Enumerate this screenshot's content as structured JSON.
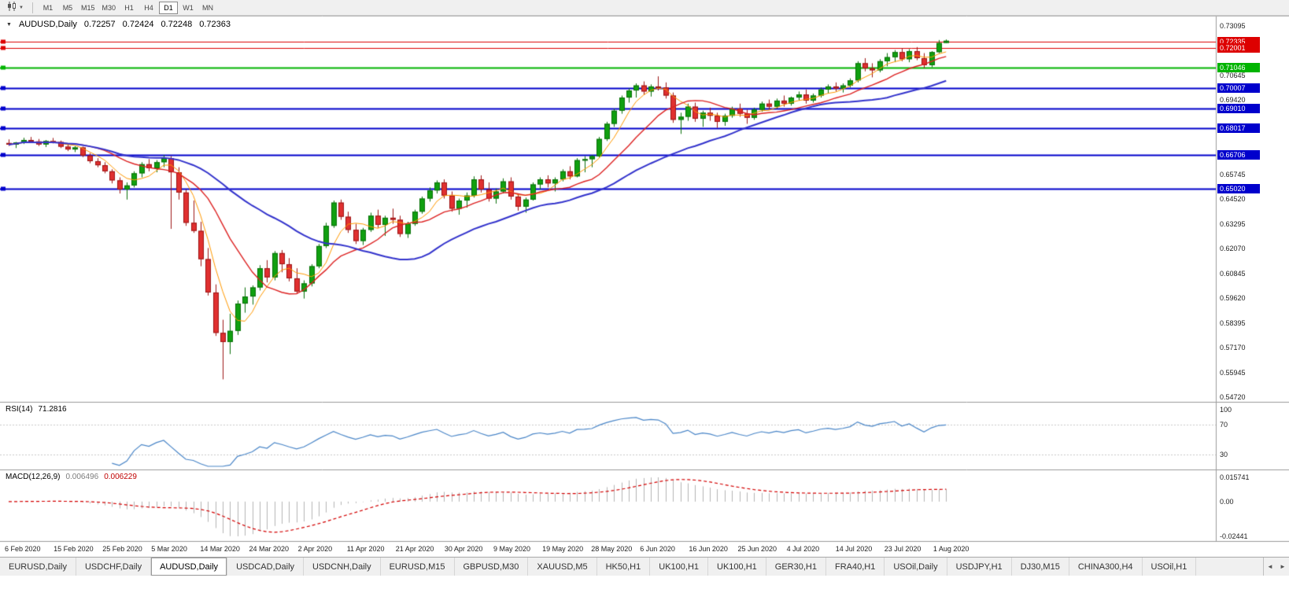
{
  "toolbar": {
    "chart_menu_caret": "▼",
    "timeframes": [
      "M1",
      "M5",
      "M15",
      "M30",
      "H1",
      "H4",
      "D1",
      "W1",
      "MN"
    ],
    "active_timeframe": "D1"
  },
  "chart": {
    "title": {
      "collapse_icon": "▼",
      "symbol": "AUDUSD,Daily",
      "open": "0.72257",
      "high": "0.72424",
      "low": "0.72248",
      "close": "0.72363"
    }
  },
  "rsi_panel": {
    "name": "RSI(14)",
    "value": "71.2816",
    "line_color": "#4a86c8",
    "levels": [
      {
        "label": "100",
        "value": 100
      },
      {
        "label": "70",
        "value": 70
      },
      {
        "label": "30",
        "value": 30
      }
    ]
  },
  "macd_panel": {
    "name": "MACD(12,26,9)",
    "value_main": "0.006496",
    "value_signal": "0.006229",
    "axis_max_label": "0.015741",
    "axis_zero_label": "0.00",
    "axis_min_label": "-0.02441",
    "histogram_color": "#b4b4b4",
    "signal_color": "#d40000"
  },
  "tabs": {
    "scroll_left_icon": "◄",
    "scroll_right_icon": "►",
    "items": [
      {
        "label": "EURUSD,Daily"
      },
      {
        "label": "USDCHF,Daily"
      },
      {
        "label": "AUDUSD,Daily",
        "active": true
      },
      {
        "label": "USDCAD,Daily"
      },
      {
        "label": "USDCNH,Daily"
      },
      {
        "label": "EURUSD,M15"
      },
      {
        "label": "GBPUSD,M30"
      },
      {
        "label": "XAUUSD,M5"
      },
      {
        "label": "HK50,H1"
      },
      {
        "label": "UK100,H1"
      },
      {
        "label": "UK100,H1"
      },
      {
        "label": "GER30,H1"
      },
      {
        "label": "FRA40,H1"
      },
      {
        "label": "USOil,Daily"
      },
      {
        "label": "USDJPY,H1"
      },
      {
        "label": "DJ30,M15"
      },
      {
        "label": "CHINA300,H4"
      },
      {
        "label": "USOil,H1"
      }
    ]
  },
  "chart_data": {
    "type": "candlestick",
    "symbol": "AUDUSD",
    "timeframe": "Daily",
    "price_axis_ticks": [
      "0.73095",
      "0.70645",
      "0.69420",
      "0.65745",
      "0.64520",
      "0.63295",
      "0.62070",
      "0.60845",
      "0.59620",
      "0.58395",
      "0.57170",
      "0.55945",
      "0.54720"
    ],
    "x_labels": [
      "6 Feb 2020",
      "15 Feb 2020",
      "25 Feb 2020",
      "5 Mar 2020",
      "14 Mar 2020",
      "24 Mar 2020",
      "2 Apr 2020",
      "11 Apr 2020",
      "21 Apr 2020",
      "30 Apr 2020",
      "9 May 2020",
      "19 May 2020",
      "28 May 2020",
      "6 Jun 2020",
      "16 Jun 2020",
      "25 Jun 2020",
      "4 Jul 2020",
      "14 Jul 2020",
      "23 Jul 2020",
      "1 Aug 2020"
    ],
    "hlines": [
      {
        "price": 0.72335,
        "label": "0.72335",
        "color": "#dd0000",
        "width": 1
      },
      {
        "price": 0.72001,
        "label": "0.72001",
        "color": "#dd0000",
        "width": 1
      },
      {
        "price": 0.71046,
        "label": "0.71046",
        "color": "#00b400",
        "width": 2
      },
      {
        "price": 0.70007,
        "label": "0.70007",
        "color": "#0000cc",
        "width": 2
      },
      {
        "price": 0.6901,
        "label": "0.69010",
        "color": "#0000cc",
        "width": 2
      },
      {
        "price": 0.68017,
        "label": "0.68017",
        "color": "#0000cc",
        "width": 2
      },
      {
        "price": 0.66706,
        "label": "0.66706",
        "color": "#0000cc",
        "width": 2
      },
      {
        "price": 0.6502,
        "label": "0.65020",
        "color": "#0000cc",
        "width": 2
      }
    ],
    "moving_averages": [
      {
        "period": 5,
        "color": "#ff9900",
        "width": 1
      },
      {
        "period": 12,
        "color": "#dd2222",
        "width": 1.4
      },
      {
        "period": 30,
        "color": "#3333cc",
        "width": 2
      }
    ],
    "candle_colors": {
      "up": "#10a010",
      "up_border": "#0a700a",
      "down": "#e03030",
      "down_border": "#9d1515"
    },
    "rsi": {
      "period": 14
    },
    "macd": {
      "fast": 12,
      "slow": 26,
      "signal": 9
    },
    "ohlc": [
      [
        0.673,
        0.6748,
        0.6715,
        0.6722
      ],
      [
        0.6722,
        0.6735,
        0.6705,
        0.6732
      ],
      [
        0.6732,
        0.6756,
        0.6725,
        0.6745
      ],
      [
        0.6745,
        0.676,
        0.673,
        0.6738
      ],
      [
        0.6738,
        0.675,
        0.6715,
        0.6723
      ],
      [
        0.6723,
        0.6745,
        0.671,
        0.674
      ],
      [
        0.674,
        0.6755,
        0.6728,
        0.6735
      ],
      [
        0.6735,
        0.6742,
        0.6705,
        0.6712
      ],
      [
        0.6712,
        0.6725,
        0.669,
        0.6698
      ],
      [
        0.6698,
        0.6715,
        0.6685,
        0.6708
      ],
      [
        0.6708,
        0.6712,
        0.666,
        0.6668
      ],
      [
        0.6668,
        0.668,
        0.663,
        0.664
      ],
      [
        0.664,
        0.6655,
        0.661,
        0.662
      ],
      [
        0.662,
        0.6635,
        0.658,
        0.659
      ],
      [
        0.659,
        0.66,
        0.653,
        0.6545
      ],
      [
        0.6545,
        0.656,
        0.648,
        0.65
      ],
      [
        0.65,
        0.6535,
        0.645,
        0.652
      ],
      [
        0.652,
        0.659,
        0.651,
        0.658
      ],
      [
        0.658,
        0.6635,
        0.656,
        0.6625
      ],
      [
        0.6625,
        0.665,
        0.659,
        0.6605
      ],
      [
        0.6605,
        0.6645,
        0.6585,
        0.6635
      ],
      [
        0.6635,
        0.667,
        0.661,
        0.6655
      ],
      [
        0.6655,
        0.6665,
        0.6305,
        0.6585
      ],
      [
        0.6585,
        0.661,
        0.645,
        0.6485
      ],
      [
        0.6485,
        0.65,
        0.632,
        0.6335
      ],
      [
        0.6335,
        0.6445,
        0.6285,
        0.6295
      ],
      [
        0.6295,
        0.634,
        0.612,
        0.6155
      ],
      [
        0.6155,
        0.621,
        0.5975,
        0.599
      ],
      [
        0.599,
        0.603,
        0.5775,
        0.579
      ],
      [
        0.579,
        0.5855,
        0.556,
        0.5745
      ],
      [
        0.5745,
        0.5885,
        0.5685,
        0.58
      ],
      [
        0.58,
        0.595,
        0.578,
        0.5935
      ],
      [
        0.5935,
        0.6015,
        0.589,
        0.597
      ],
      [
        0.597,
        0.6025,
        0.593,
        0.6015
      ],
      [
        0.6015,
        0.6125,
        0.6,
        0.611
      ],
      [
        0.611,
        0.615,
        0.604,
        0.6065
      ],
      [
        0.6065,
        0.6195,
        0.605,
        0.6185
      ],
      [
        0.6185,
        0.62,
        0.609,
        0.613
      ],
      [
        0.613,
        0.616,
        0.6045,
        0.606
      ],
      [
        0.606,
        0.611,
        0.5985,
        0.5995
      ],
      [
        0.5995,
        0.605,
        0.596,
        0.6035
      ],
      [
        0.6035,
        0.613,
        0.602,
        0.612
      ],
      [
        0.612,
        0.623,
        0.611,
        0.622
      ],
      [
        0.622,
        0.6335,
        0.621,
        0.632
      ],
      [
        0.632,
        0.6445,
        0.631,
        0.6435
      ],
      [
        0.6435,
        0.645,
        0.635,
        0.6365
      ],
      [
        0.6365,
        0.639,
        0.6285,
        0.63
      ],
      [
        0.63,
        0.633,
        0.623,
        0.6245
      ],
      [
        0.6245,
        0.631,
        0.6225,
        0.63
      ],
      [
        0.63,
        0.6385,
        0.629,
        0.637
      ],
      [
        0.637,
        0.64,
        0.631,
        0.6325
      ],
      [
        0.6325,
        0.637,
        0.627,
        0.636
      ],
      [
        0.636,
        0.6405,
        0.633,
        0.635
      ],
      [
        0.635,
        0.637,
        0.6265,
        0.628
      ],
      [
        0.628,
        0.634,
        0.626,
        0.633
      ],
      [
        0.633,
        0.64,
        0.632,
        0.639
      ],
      [
        0.639,
        0.6465,
        0.638,
        0.6455
      ],
      [
        0.6455,
        0.651,
        0.644,
        0.6495
      ],
      [
        0.6495,
        0.6545,
        0.648,
        0.6535
      ],
      [
        0.6535,
        0.655,
        0.6455,
        0.647
      ],
      [
        0.647,
        0.649,
        0.639,
        0.6405
      ],
      [
        0.6405,
        0.6455,
        0.6375,
        0.6445
      ],
      [
        0.6445,
        0.6485,
        0.641,
        0.647
      ],
      [
        0.647,
        0.6565,
        0.646,
        0.655
      ],
      [
        0.655,
        0.657,
        0.6485,
        0.65
      ],
      [
        0.65,
        0.6535,
        0.644,
        0.6455
      ],
      [
        0.6455,
        0.6505,
        0.643,
        0.649
      ],
      [
        0.649,
        0.6555,
        0.648,
        0.654
      ],
      [
        0.654,
        0.656,
        0.645,
        0.6465
      ],
      [
        0.6465,
        0.648,
        0.6395,
        0.6415
      ],
      [
        0.6415,
        0.646,
        0.6385,
        0.645
      ],
      [
        0.645,
        0.6535,
        0.6445,
        0.6525
      ],
      [
        0.6525,
        0.656,
        0.65,
        0.655
      ],
      [
        0.655,
        0.657,
        0.651,
        0.653
      ],
      [
        0.653,
        0.656,
        0.649,
        0.655
      ],
      [
        0.655,
        0.66,
        0.654,
        0.659
      ],
      [
        0.659,
        0.6615,
        0.655,
        0.6565
      ],
      [
        0.6565,
        0.6655,
        0.656,
        0.6645
      ],
      [
        0.6645,
        0.6665,
        0.6585,
        0.665
      ],
      [
        0.665,
        0.667,
        0.661,
        0.6665
      ],
      [
        0.6665,
        0.676,
        0.666,
        0.675
      ],
      [
        0.675,
        0.6835,
        0.674,
        0.6825
      ],
      [
        0.6825,
        0.69,
        0.681,
        0.689
      ],
      [
        0.689,
        0.6965,
        0.6875,
        0.6955
      ],
      [
        0.6955,
        0.7,
        0.693,
        0.699
      ],
      [
        0.699,
        0.7025,
        0.6955,
        0.7015
      ],
      [
        0.7015,
        0.7035,
        0.697,
        0.6985
      ],
      [
        0.6985,
        0.702,
        0.696,
        0.701
      ],
      [
        0.701,
        0.706,
        0.699,
        0.7005
      ],
      [
        0.7005,
        0.703,
        0.695,
        0.6965
      ],
      [
        0.6965,
        0.698,
        0.683,
        0.6845
      ],
      [
        0.6845,
        0.688,
        0.6775,
        0.686
      ],
      [
        0.686,
        0.6925,
        0.684,
        0.691
      ],
      [
        0.691,
        0.693,
        0.6835,
        0.685
      ],
      [
        0.685,
        0.689,
        0.681,
        0.688
      ],
      [
        0.688,
        0.6905,
        0.684,
        0.6865
      ],
      [
        0.6865,
        0.688,
        0.6805,
        0.6835
      ],
      [
        0.6835,
        0.6875,
        0.6815,
        0.6865
      ],
      [
        0.6865,
        0.691,
        0.6855,
        0.69
      ],
      [
        0.69,
        0.6925,
        0.686,
        0.6875
      ],
      [
        0.6875,
        0.6895,
        0.6825,
        0.6855
      ],
      [
        0.6855,
        0.6905,
        0.6845,
        0.6895
      ],
      [
        0.6895,
        0.6935,
        0.6885,
        0.6925
      ],
      [
        0.6925,
        0.6945,
        0.6895,
        0.691
      ],
      [
        0.691,
        0.695,
        0.69,
        0.694
      ],
      [
        0.694,
        0.6965,
        0.691,
        0.6925
      ],
      [
        0.6925,
        0.696,
        0.6915,
        0.6955
      ],
      [
        0.6955,
        0.6985,
        0.694,
        0.697
      ],
      [
        0.697,
        0.6995,
        0.6925,
        0.694
      ],
      [
        0.694,
        0.6975,
        0.693,
        0.6965
      ],
      [
        0.6965,
        0.7005,
        0.6955,
        0.6995
      ],
      [
        0.6995,
        0.702,
        0.6975,
        0.701
      ],
      [
        0.701,
        0.703,
        0.6985,
        0.7
      ],
      [
        0.7,
        0.7025,
        0.698,
        0.7015
      ],
      [
        0.7015,
        0.705,
        0.7005,
        0.704
      ],
      [
        0.704,
        0.7135,
        0.703,
        0.7125
      ],
      [
        0.7125,
        0.715,
        0.7085,
        0.71
      ],
      [
        0.71,
        0.7125,
        0.7055,
        0.709
      ],
      [
        0.709,
        0.7145,
        0.708,
        0.7135
      ],
      [
        0.7135,
        0.7175,
        0.711,
        0.7155
      ],
      [
        0.7155,
        0.719,
        0.713,
        0.718
      ],
      [
        0.718,
        0.72,
        0.7135,
        0.7145
      ],
      [
        0.7145,
        0.7195,
        0.713,
        0.7185
      ],
      [
        0.7185,
        0.7205,
        0.714,
        0.715
      ],
      [
        0.715,
        0.7175,
        0.71,
        0.7115
      ],
      [
        0.7115,
        0.7185,
        0.7105,
        0.718
      ],
      [
        0.718,
        0.724,
        0.7175,
        0.7225
      ],
      [
        0.72257,
        0.72424,
        0.72248,
        0.72363
      ]
    ]
  }
}
